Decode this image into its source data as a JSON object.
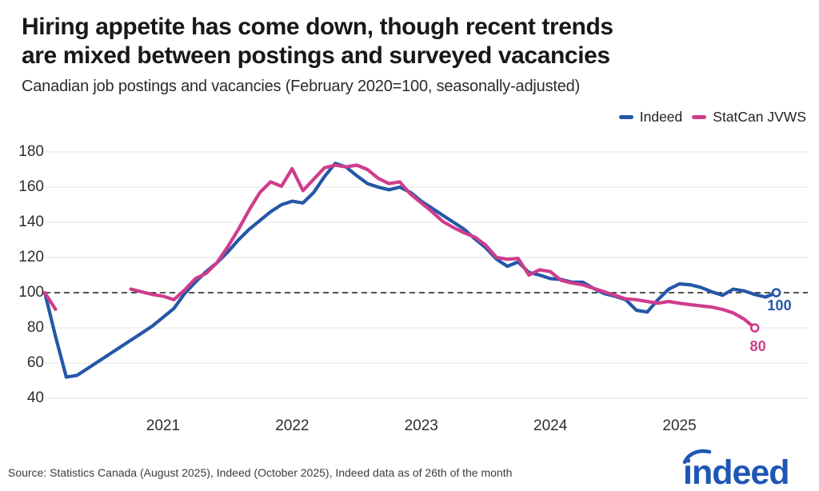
{
  "header": {
    "title_line1": "Hiring appetite has come down, though recent trends",
    "title_line2": "are mixed between postings and surveyed vacancies",
    "subtitle": "Canadian job postings and vacancies (February 2020=100, seasonally-adjusted)"
  },
  "legend": {
    "items": [
      {
        "label": "Indeed",
        "color": "#2557a7"
      },
      {
        "label": "StatCan JVWS",
        "color": "#ce3d8c"
      }
    ]
  },
  "footer": {
    "source": "Source: Statistics Canada (August 2025), Indeed (October 2025), Indeed data as of 26th of the month",
    "logo_text": "indeed",
    "logo_color": "#1f56b5"
  },
  "chart_data": {
    "type": "line",
    "title": "Hiring appetite has come down, though recent trends are mixed between postings and surveyed vacancies",
    "subtitle": "Canadian job postings and vacancies (February 2020=100, seasonally-adjusted)",
    "x_start_month": "2020-02",
    "x_interval": "monthly",
    "x_tick_labels": [
      "2021",
      "2022",
      "2023",
      "2024",
      "2025"
    ],
    "yticks": [
      40,
      60,
      80,
      100,
      120,
      140,
      160,
      180
    ],
    "ylim": [
      40,
      186
    ],
    "baseline": 100,
    "grid": "horizontal-only",
    "legend_position": "top-right",
    "series": [
      {
        "name": "Indeed",
        "color": "#2557a7",
        "end_label": "100",
        "last_month": "2025-10",
        "values": [
          100,
          75,
          52,
          53,
          57,
          61,
          65,
          69,
          73,
          77,
          81,
          86,
          91,
          99.5,
          106,
          112,
          117,
          123,
          130,
          136,
          141,
          146,
          150,
          152,
          151,
          157,
          166,
          173.5,
          171.5,
          166.5,
          162,
          160,
          158.5,
          160,
          157,
          152,
          148,
          144,
          140,
          136,
          130.5,
          125.5,
          119,
          115,
          117.5,
          111.5,
          110,
          108,
          107.5,
          106,
          106,
          102.5,
          99.5,
          98,
          96,
          90,
          89,
          96,
          102,
          105,
          104.5,
          103,
          100.5,
          98.5,
          102,
          101,
          99,
          97.5,
          100
        ]
      },
      {
        "name": "StatCan JVWS",
        "color": "#ce3d8c",
        "end_label": "80",
        "last_month": "2025-08",
        "values": [
          100,
          90.5,
          null,
          null,
          null,
          null,
          null,
          null,
          102,
          100.5,
          99,
          98,
          96,
          101.5,
          108,
          111,
          117,
          126,
          136,
          147,
          157,
          163,
          160.5,
          170.5,
          158,
          164.5,
          171,
          172.5,
          171.5,
          172.5,
          170,
          165,
          162,
          163,
          156,
          151,
          146,
          140.5,
          137,
          134,
          131.5,
          127,
          120,
          119,
          119.5,
          110,
          113,
          112,
          107,
          105.5,
          104.5,
          102.5,
          100.5,
          98.5,
          96.5,
          96,
          95,
          94,
          95,
          94,
          93.2,
          92.5,
          91.8,
          90.5,
          88.5,
          85,
          80
        ]
      }
    ]
  }
}
